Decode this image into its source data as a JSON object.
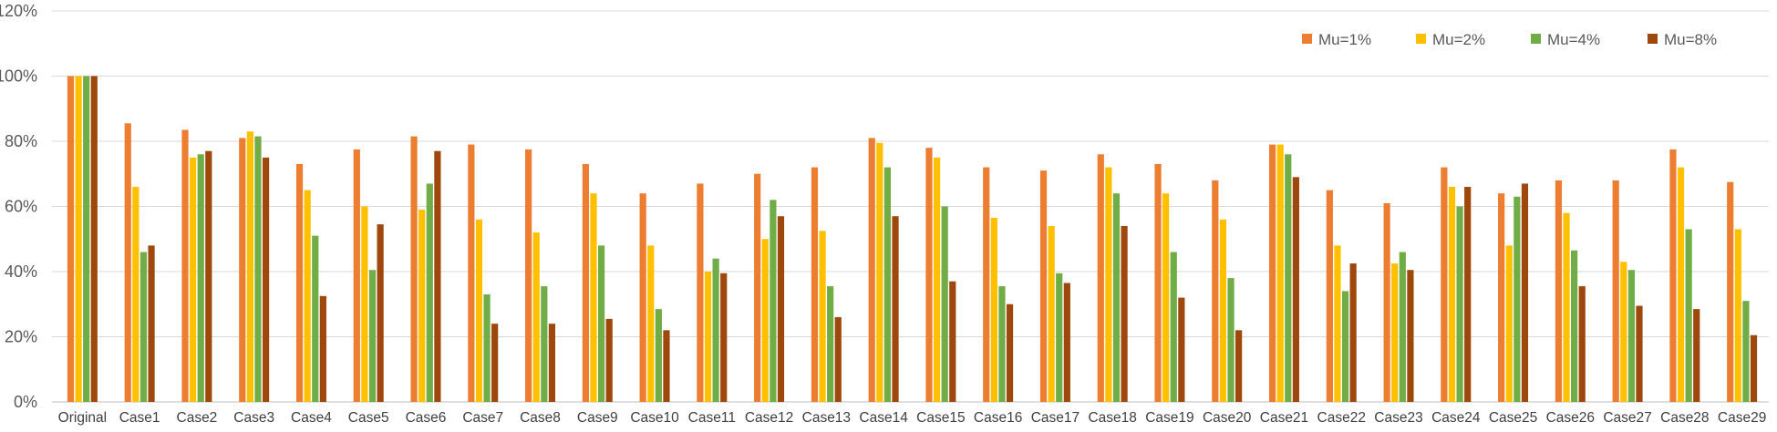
{
  "chart_data": {
    "type": "bar",
    "title": "",
    "xlabel": "",
    "ylabel": "",
    "ylim": [
      0,
      120
    ],
    "y_ticks": [
      "0%",
      "20%",
      "40%",
      "60%",
      "80%",
      "100%",
      "120%"
    ],
    "grid": true,
    "legend_position": "top-right",
    "categories": [
      "Original",
      "Case1",
      "Case2",
      "Case3",
      "Case4",
      "Case5",
      "Case6",
      "Case7",
      "Case8",
      "Case9",
      "Case10",
      "Case11",
      "Case12",
      "Case13",
      "Case14",
      "Case15",
      "Case16",
      "Case17",
      "Case18",
      "Case19",
      "Case20",
      "Case21",
      "Case22",
      "Case23",
      "Case24",
      "Case25",
      "Case26",
      "Case27",
      "Case28",
      "Case29"
    ],
    "series": [
      {
        "name": "Mu=1%",
        "color": "#ED7D31",
        "values": [
          100,
          85.5,
          83.5,
          81,
          73,
          77.5,
          81.5,
          79,
          77.5,
          73,
          64,
          67,
          70,
          72,
          81,
          78,
          72,
          71,
          76,
          73,
          68,
          79,
          65,
          61,
          72,
          64,
          68,
          68,
          77.5,
          67.5
        ]
      },
      {
        "name": "Mu=2%",
        "color": "#FFC000",
        "values": [
          100,
          66,
          75,
          83,
          65,
          60,
          59,
          56,
          52,
          64,
          48,
          40,
          50,
          52.5,
          79.5,
          75,
          56.5,
          54,
          72,
          64,
          56,
          79,
          48,
          42.5,
          66,
          48,
          58,
          43,
          72,
          53
        ]
      },
      {
        "name": "Mu=4%",
        "color": "#70AD47",
        "values": [
          100,
          46,
          76,
          81.5,
          51,
          40.5,
          67,
          33,
          35.5,
          48,
          28.5,
          44,
          62,
          35.5,
          72,
          60,
          35.5,
          39.5,
          64,
          46,
          38,
          76,
          34,
          46,
          60,
          63,
          46.5,
          40.5,
          53,
          31
        ]
      },
      {
        "name": "Mu=8%",
        "color": "#9E480E",
        "values": [
          100,
          48,
          77,
          75,
          32.5,
          54.5,
          77,
          24,
          24,
          25.5,
          22,
          39.5,
          57,
          26,
          57,
          37,
          30,
          36.5,
          54,
          32,
          22,
          69,
          42.5,
          40.5,
          66,
          67,
          35.5,
          29.5,
          28.5,
          20.5
        ]
      }
    ]
  }
}
